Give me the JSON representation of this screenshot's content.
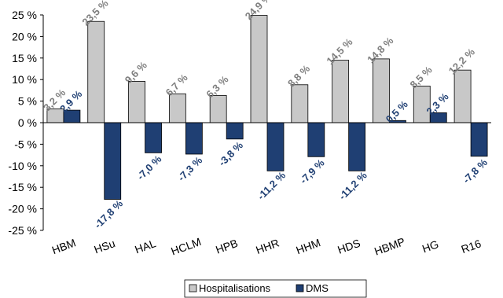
{
  "chart_data": {
    "type": "bar",
    "categories": [
      "HBM",
      "HSu",
      "HAL",
      "HCLM",
      "HPB",
      "HHR",
      "HHM",
      "HDS",
      "HBMP",
      "HG",
      "R16"
    ],
    "series": [
      {
        "name": "Hospitalisations",
        "color": "#c8c8c8",
        "label_color": "#7f7f7f",
        "values": [
          3.2,
          23.5,
          9.6,
          6.7,
          6.3,
          24.9,
          8.8,
          14.5,
          14.8,
          8.5,
          12.2
        ],
        "labels": [
          "3,2 %",
          "23,5 %",
          "9,6 %",
          "6,7 %",
          "6,3 %",
          "24,9 %",
          "8,8 %",
          "14,5 %",
          "14,8 %",
          "8,5 %",
          "12,2 %"
        ]
      },
      {
        "name": "DMS",
        "color": "#1f3f73",
        "label_color": "#1f3f73",
        "values": [
          2.9,
          -17.8,
          -7.0,
          -7.3,
          -3.8,
          -11.2,
          -7.9,
          -11.2,
          0.5,
          2.3,
          -7.8
        ],
        "labels": [
          "2,9 %",
          "-17,8 %",
          "-7,0 %",
          "-7,3 %",
          "-3,8 %",
          "-11,2 %",
          "-7,9 %",
          "-11,2 %",
          "0,5 %",
          "2,3 %",
          "-7,8 %"
        ]
      }
    ],
    "ylim": [
      -25,
      25
    ],
    "yticks": [
      25,
      20,
      15,
      10,
      5,
      0,
      -5,
      -10,
      -15,
      -20,
      -25
    ],
    "ytick_labels": [
      "25 %",
      "20 %",
      "15 %",
      "10 %",
      "5 %",
      "0 %",
      "-5 %",
      "-10 %",
      "-15 %",
      "-20 %",
      "-25 %"
    ],
    "grid": false,
    "legend_position": "bottom-center",
    "title": "",
    "xlabel": "",
    "ylabel": ""
  }
}
